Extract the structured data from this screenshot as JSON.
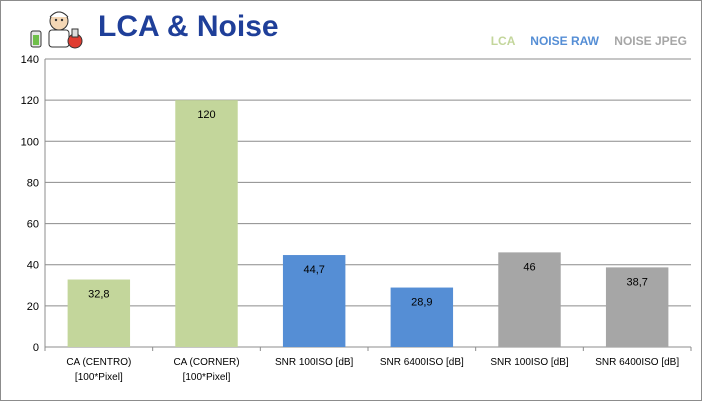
{
  "header": {
    "title": "LCA & Noise",
    "logo_icon": "cartoon-scientist-logo"
  },
  "legend": [
    {
      "label": "LCA",
      "color": "#c3d69b"
    },
    {
      "label": "NOISE RAW",
      "color": "#558ed5"
    },
    {
      "label": "NOISE JPEG",
      "color": "#a6a6a6"
    }
  ],
  "chart_data": {
    "type": "bar",
    "title": "LCA & Noise",
    "xlabel": "",
    "ylabel": "",
    "ylim": [
      0,
      140
    ],
    "yticks": [
      0,
      20,
      40,
      60,
      80,
      100,
      120,
      140
    ],
    "grid": true,
    "legend_position": "top-right",
    "categories": [
      [
        "CA (CENTRO)",
        "[100*Pixel]"
      ],
      [
        "CA (CORNER)",
        "[100*Pixel]"
      ],
      [
        "SNR 100ISO [dB]"
      ],
      [
        "SNR 6400ISO [dB]"
      ],
      [
        "SNR 100ISO [dB]"
      ],
      [
        "SNR 6400ISO [dB]"
      ]
    ],
    "values": [
      32.8,
      120,
      44.7,
      28.9,
      46,
      38.7
    ],
    "value_labels": [
      "32,8",
      "120",
      "44,7",
      "28,9",
      "46",
      "38,7"
    ],
    "bar_colors": [
      "#c3d69b",
      "#c3d69b",
      "#558ed5",
      "#558ed5",
      "#a6a6a6",
      "#a6a6a6"
    ]
  }
}
